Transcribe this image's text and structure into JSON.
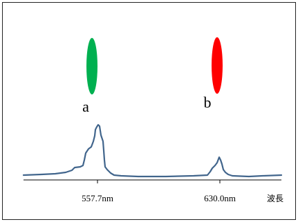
{
  "colors": {
    "line_a": "#00b050",
    "line_b": "#ff0000",
    "spectrum": "#41658c",
    "axis": "#000000",
    "border": "#222222"
  },
  "lines": {
    "a": {
      "label": "a",
      "color": "#00b050"
    },
    "b": {
      "label": "b",
      "color": "#ff0000"
    }
  },
  "spectrum": {
    "ticks": [
      "557.7nm",
      "630.0nm"
    ],
    "axis_title": "波長"
  }
}
